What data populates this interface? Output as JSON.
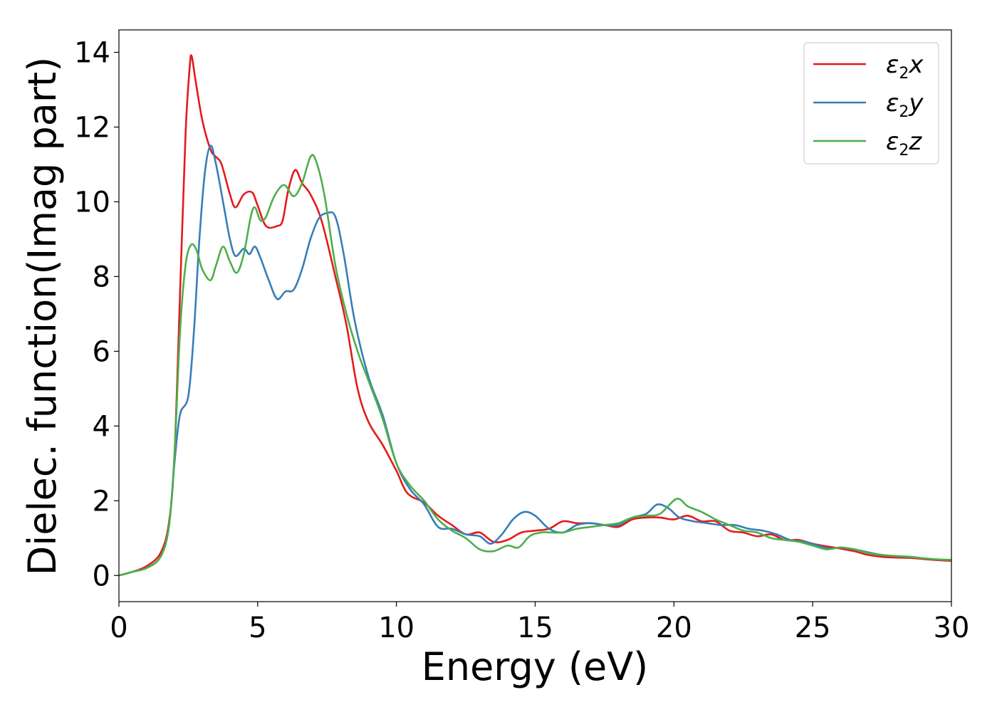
{
  "chart_data": {
    "type": "line",
    "xlabel": "Energy (eV)",
    "ylabel": "Dielec. function(Imag part)",
    "xlim": [
      0,
      30
    ],
    "ylim": [
      -0.7,
      14.6
    ],
    "xticks": [
      0,
      5,
      10,
      15,
      20,
      25,
      30
    ],
    "yticks": [
      0,
      2,
      4,
      6,
      8,
      10,
      12,
      14
    ],
    "grid": false,
    "legend_position": "top-right",
    "series": [
      {
        "name": "ε2x",
        "legend_main": "ε",
        "legend_sub": "2",
        "legend_tail": "x",
        "color": "#e41a1c",
        "points": [
          [
            0,
            0
          ],
          [
            0.5,
            0.1
          ],
          [
            1.0,
            0.25
          ],
          [
            1.5,
            0.6
          ],
          [
            1.8,
            1.4
          ],
          [
            2.0,
            3.2
          ],
          [
            2.2,
            7.5
          ],
          [
            2.4,
            11.8
          ],
          [
            2.55,
            13.6
          ],
          [
            2.62,
            13.9
          ],
          [
            2.75,
            13.3
          ],
          [
            3.0,
            12.2
          ],
          [
            3.3,
            11.4
          ],
          [
            3.5,
            11.2
          ],
          [
            3.7,
            11.0
          ],
          [
            4.0,
            10.2
          ],
          [
            4.2,
            9.85
          ],
          [
            4.5,
            10.2
          ],
          [
            4.8,
            10.25
          ],
          [
            5.0,
            9.9
          ],
          [
            5.3,
            9.35
          ],
          [
            5.7,
            9.35
          ],
          [
            5.9,
            9.5
          ],
          [
            6.1,
            10.3
          ],
          [
            6.35,
            10.85
          ],
          [
            6.6,
            10.5
          ],
          [
            6.9,
            10.2
          ],
          [
            7.3,
            9.5
          ],
          [
            7.8,
            8.0
          ],
          [
            8.2,
            6.7
          ],
          [
            8.6,
            5.0
          ],
          [
            9.0,
            4.1
          ],
          [
            9.5,
            3.5
          ],
          [
            10.0,
            2.8
          ],
          [
            10.4,
            2.2
          ],
          [
            11.0,
            1.95
          ],
          [
            11.5,
            1.6
          ],
          [
            12.0,
            1.35
          ],
          [
            12.5,
            1.1
          ],
          [
            13.0,
            1.15
          ],
          [
            13.5,
            0.9
          ],
          [
            14.0,
            0.95
          ],
          [
            14.5,
            1.15
          ],
          [
            15.0,
            1.2
          ],
          [
            15.5,
            1.25
          ],
          [
            16.0,
            1.45
          ],
          [
            16.5,
            1.4
          ],
          [
            17.0,
            1.4
          ],
          [
            17.5,
            1.35
          ],
          [
            18.0,
            1.3
          ],
          [
            18.5,
            1.5
          ],
          [
            19.0,
            1.55
          ],
          [
            19.5,
            1.55
          ],
          [
            20.0,
            1.5
          ],
          [
            20.5,
            1.6
          ],
          [
            21.0,
            1.45
          ],
          [
            21.5,
            1.45
          ],
          [
            22.0,
            1.2
          ],
          [
            22.5,
            1.15
          ],
          [
            23.0,
            1.05
          ],
          [
            23.5,
            1.1
          ],
          [
            24.0,
            0.95
          ],
          [
            24.5,
            0.95
          ],
          [
            25.0,
            0.85
          ],
          [
            25.5,
            0.78
          ],
          [
            26.0,
            0.72
          ],
          [
            26.5,
            0.65
          ],
          [
            27.0,
            0.55
          ],
          [
            27.5,
            0.5
          ],
          [
            28.0,
            0.48
          ],
          [
            28.5,
            0.47
          ],
          [
            29.0,
            0.44
          ],
          [
            29.5,
            0.41
          ],
          [
            30.0,
            0.39
          ]
        ]
      },
      {
        "name": "ε2y",
        "legend_main": "ε",
        "legend_sub": "2",
        "legend_tail": "y",
        "color": "#377eb8",
        "points": [
          [
            0,
            0
          ],
          [
            0.5,
            0.1
          ],
          [
            1.0,
            0.2
          ],
          [
            1.5,
            0.5
          ],
          [
            1.8,
            1.3
          ],
          [
            2.0,
            3.0
          ],
          [
            2.2,
            4.3
          ],
          [
            2.5,
            4.8
          ],
          [
            2.7,
            6.5
          ],
          [
            2.9,
            9.0
          ],
          [
            3.1,
            10.8
          ],
          [
            3.3,
            11.5
          ],
          [
            3.5,
            11.0
          ],
          [
            3.8,
            9.8
          ],
          [
            4.0,
            9.0
          ],
          [
            4.2,
            8.55
          ],
          [
            4.5,
            8.75
          ],
          [
            4.7,
            8.6
          ],
          [
            4.9,
            8.8
          ],
          [
            5.1,
            8.5
          ],
          [
            5.4,
            7.9
          ],
          [
            5.7,
            7.4
          ],
          [
            6.0,
            7.6
          ],
          [
            6.3,
            7.65
          ],
          [
            6.6,
            8.2
          ],
          [
            6.9,
            9.0
          ],
          [
            7.2,
            9.55
          ],
          [
            7.5,
            9.7
          ],
          [
            7.8,
            9.6
          ],
          [
            8.1,
            8.6
          ],
          [
            8.5,
            6.8
          ],
          [
            9.0,
            5.3
          ],
          [
            9.5,
            4.3
          ],
          [
            10.0,
            3.0
          ],
          [
            10.5,
            2.3
          ],
          [
            11.0,
            1.9
          ],
          [
            11.5,
            1.3
          ],
          [
            12.0,
            1.25
          ],
          [
            12.5,
            1.1
          ],
          [
            13.0,
            1.05
          ],
          [
            13.4,
            0.85
          ],
          [
            13.8,
            1.1
          ],
          [
            14.2,
            1.5
          ],
          [
            14.6,
            1.7
          ],
          [
            15.0,
            1.6
          ],
          [
            15.5,
            1.25
          ],
          [
            16.0,
            1.15
          ],
          [
            16.5,
            1.35
          ],
          [
            17.0,
            1.4
          ],
          [
            17.5,
            1.35
          ],
          [
            18.0,
            1.35
          ],
          [
            18.5,
            1.55
          ],
          [
            19.0,
            1.65
          ],
          [
            19.4,
            1.9
          ],
          [
            19.8,
            1.8
          ],
          [
            20.2,
            1.55
          ],
          [
            20.7,
            1.45
          ],
          [
            21.2,
            1.4
          ],
          [
            21.7,
            1.35
          ],
          [
            22.2,
            1.35
          ],
          [
            22.7,
            1.25
          ],
          [
            23.2,
            1.2
          ],
          [
            23.7,
            1.1
          ],
          [
            24.2,
            0.95
          ],
          [
            24.7,
            0.9
          ],
          [
            25.2,
            0.8
          ],
          [
            25.6,
            0.72
          ],
          [
            26.0,
            0.75
          ],
          [
            26.5,
            0.7
          ],
          [
            27.0,
            0.62
          ],
          [
            27.5,
            0.55
          ],
          [
            28.0,
            0.52
          ],
          [
            28.5,
            0.5
          ],
          [
            29.0,
            0.46
          ],
          [
            29.5,
            0.43
          ],
          [
            30.0,
            0.41
          ]
        ]
      },
      {
        "name": "ε2z",
        "legend_main": "ε",
        "legend_sub": "2",
        "legend_tail": "z",
        "color": "#4daf4a",
        "points": [
          [
            0,
            0
          ],
          [
            0.5,
            0.1
          ],
          [
            1.0,
            0.2
          ],
          [
            1.5,
            0.5
          ],
          [
            1.8,
            1.3
          ],
          [
            2.0,
            3.2
          ],
          [
            2.2,
            6.5
          ],
          [
            2.4,
            8.3
          ],
          [
            2.6,
            8.85
          ],
          [
            2.8,
            8.7
          ],
          [
            3.0,
            8.2
          ],
          [
            3.3,
            7.9
          ],
          [
            3.5,
            8.3
          ],
          [
            3.75,
            8.8
          ],
          [
            4.0,
            8.4
          ],
          [
            4.25,
            8.1
          ],
          [
            4.5,
            8.6
          ],
          [
            4.75,
            9.6
          ],
          [
            4.9,
            9.85
          ],
          [
            5.1,
            9.5
          ],
          [
            5.3,
            9.6
          ],
          [
            5.6,
            10.15
          ],
          [
            5.95,
            10.45
          ],
          [
            6.3,
            10.15
          ],
          [
            6.6,
            10.5
          ],
          [
            6.9,
            11.2
          ],
          [
            7.1,
            11.1
          ],
          [
            7.4,
            10.2
          ],
          [
            7.8,
            8.3
          ],
          [
            8.2,
            7.0
          ],
          [
            8.6,
            6.0
          ],
          [
            9.0,
            5.2
          ],
          [
            9.5,
            4.2
          ],
          [
            10.0,
            3.0
          ],
          [
            10.5,
            2.4
          ],
          [
            11.0,
            2.0
          ],
          [
            11.5,
            1.5
          ],
          [
            12.0,
            1.2
          ],
          [
            12.5,
            1.0
          ],
          [
            13.0,
            0.7
          ],
          [
            13.5,
            0.65
          ],
          [
            14.0,
            0.8
          ],
          [
            14.4,
            0.75
          ],
          [
            14.8,
            1.05
          ],
          [
            15.2,
            1.15
          ],
          [
            15.6,
            1.15
          ],
          [
            16.0,
            1.15
          ],
          [
            16.5,
            1.25
          ],
          [
            17.0,
            1.3
          ],
          [
            17.5,
            1.35
          ],
          [
            18.0,
            1.4
          ],
          [
            18.5,
            1.55
          ],
          [
            19.0,
            1.6
          ],
          [
            19.5,
            1.65
          ],
          [
            20.1,
            2.05
          ],
          [
            20.5,
            1.85
          ],
          [
            21.0,
            1.7
          ],
          [
            21.5,
            1.5
          ],
          [
            22.0,
            1.35
          ],
          [
            22.5,
            1.2
          ],
          [
            23.0,
            1.15
          ],
          [
            23.5,
            1.0
          ],
          [
            24.0,
            0.95
          ],
          [
            24.5,
            0.9
          ],
          [
            25.0,
            0.8
          ],
          [
            25.5,
            0.7
          ],
          [
            26.0,
            0.75
          ],
          [
            26.5,
            0.7
          ],
          [
            27.0,
            0.6
          ],
          [
            27.5,
            0.55
          ],
          [
            28.0,
            0.52
          ],
          [
            28.5,
            0.5
          ],
          [
            29.0,
            0.46
          ],
          [
            29.5,
            0.43
          ],
          [
            30.0,
            0.42
          ]
        ]
      }
    ]
  }
}
